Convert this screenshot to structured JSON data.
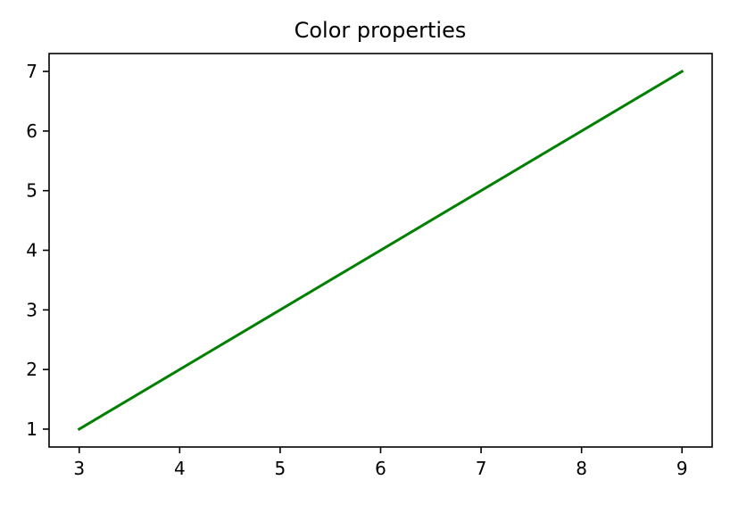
{
  "chart_data": {
    "type": "line",
    "title": "Color properties",
    "xlabel": "",
    "ylabel": "",
    "xlim": [
      2.7,
      9.3
    ],
    "ylim": [
      0.7,
      7.3
    ],
    "x_ticks": [
      3,
      4,
      5,
      6,
      7,
      8,
      9
    ],
    "y_ticks": [
      1,
      2,
      3,
      4,
      5,
      6,
      7
    ],
    "grid": false,
    "legend": "none",
    "series": [
      {
        "color": "#008000",
        "x": [
          3,
          9
        ],
        "y": [
          1,
          7
        ]
      }
    ]
  }
}
